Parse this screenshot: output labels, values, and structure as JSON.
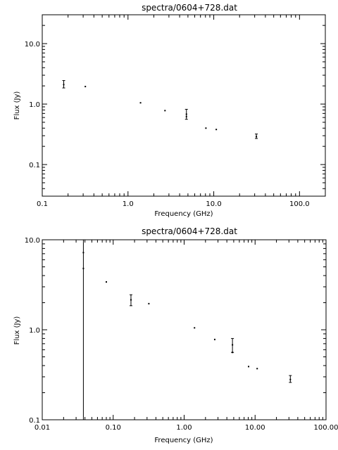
{
  "chart_data": [
    {
      "type": "scatter",
      "title": "spectra/0604+728.dat",
      "xlabel": "Frequency (GHz)",
      "ylabel": "Flux (Jy)",
      "xscale": "log",
      "yscale": "log",
      "xlim": [
        0.1,
        200
      ],
      "ylim": [
        0.03,
        30
      ],
      "xticks": [
        0.1,
        1,
        10,
        100
      ],
      "xtick_labels": [
        "0.1",
        "1.0",
        "10.0",
        "100.0"
      ],
      "yticks": [
        0.1,
        1,
        10
      ],
      "ytick_labels": [
        "0.1",
        "1.0",
        "10.0"
      ],
      "points": [
        {
          "x": 0.178,
          "y": 2.1,
          "ylo": 1.85,
          "yhi": 2.45
        },
        {
          "x": 0.318,
          "y": 1.95
        },
        {
          "x": 1.4,
          "y": 1.05
        },
        {
          "x": 2.7,
          "y": 0.78
        },
        {
          "x": 4.8,
          "y": 0.68,
          "ylo": 0.56,
          "yhi": 0.82
        },
        {
          "x": 4.8,
          "y": 0.62
        },
        {
          "x": 8.1,
          "y": 0.4
        },
        {
          "x": 10.7,
          "y": 0.38
        },
        {
          "x": 31.4,
          "y": 0.29,
          "ylo": 0.27,
          "yhi": 0.32
        }
      ]
    },
    {
      "type": "scatter",
      "title": "spectra/0604+728.dat",
      "xlabel": "Frequency (GHz)",
      "ylabel": "Flux (Jy)",
      "xscale": "log",
      "yscale": "log",
      "xlim": [
        0.01,
        100
      ],
      "ylim": [
        0.1,
        10
      ],
      "xticks": [
        0.01,
        0.1,
        1,
        10,
        100
      ],
      "xtick_labels": [
        "0.01",
        "0.10",
        "1.00",
        "10.00",
        "100.00"
      ],
      "yticks": [
        0.1,
        1,
        10
      ],
      "ytick_labels": [
        "0.1",
        "1.0",
        "10.0"
      ],
      "points": [
        {
          "x": 0.038,
          "y": 7.2,
          "ylo": 0.1,
          "yhi": 10
        },
        {
          "x": 0.038,
          "y": 4.8
        },
        {
          "x": 0.08,
          "y": 3.4
        },
        {
          "x": 0.178,
          "y": 2.15,
          "ylo": 1.85,
          "yhi": 2.45
        },
        {
          "x": 0.318,
          "y": 1.95
        },
        {
          "x": 1.4,
          "y": 1.05
        },
        {
          "x": 2.7,
          "y": 0.78
        },
        {
          "x": 4.8,
          "y": 0.68,
          "ylo": 0.56,
          "yhi": 0.8
        },
        {
          "x": 4.8,
          "y": 0.56
        },
        {
          "x": 8.1,
          "y": 0.39
        },
        {
          "x": 10.7,
          "y": 0.37
        },
        {
          "x": 31.4,
          "y": 0.28,
          "ylo": 0.26,
          "yhi": 0.31
        }
      ]
    }
  ]
}
